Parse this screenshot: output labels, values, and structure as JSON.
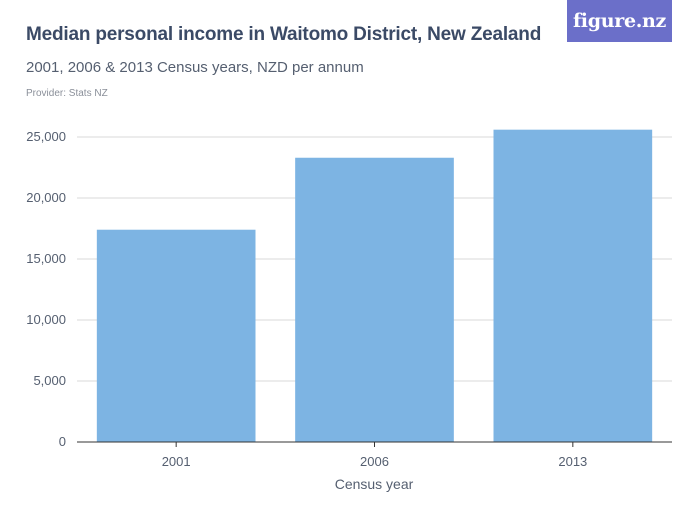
{
  "header": {
    "title": "Median personal income in Waitomo District, New Zealand",
    "subtitle": "2001, 2006 & 2013 Census years, NZD per annum",
    "provider": "Provider: Stats NZ",
    "logo_text": "figure.nz"
  },
  "colors": {
    "bar": "#7db4e3",
    "grid": "#d9d9d9",
    "axis": "#333333",
    "logo_bg": "#6b6fc9"
  },
  "chart_data": {
    "type": "bar",
    "categories": [
      "2001",
      "2006",
      "2013"
    ],
    "values": [
      17400,
      23300,
      25600
    ],
    "xlabel": "Census year",
    "ylabel": "",
    "ylim": [
      0,
      25000
    ],
    "yticks": [
      0,
      5000,
      10000,
      15000,
      20000,
      25000
    ],
    "ytick_labels": [
      "0",
      "5,000",
      "10,000",
      "15,000",
      "20,000",
      "25,000"
    ],
    "grid": true,
    "legend": "none"
  }
}
